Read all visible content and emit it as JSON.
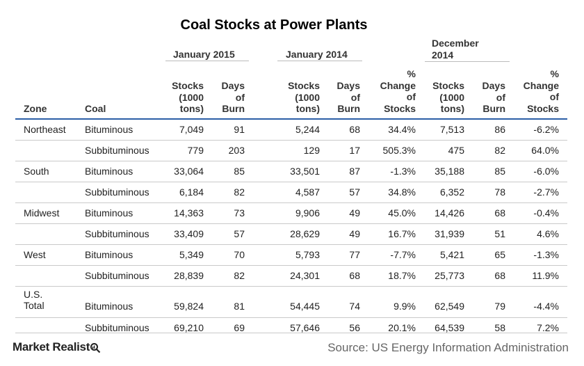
{
  "chart_data": {
    "type": "table",
    "title": "Coal Stocks at Power Plants",
    "column_groups": [
      "January 2015",
      "January 2014",
      "December 2014"
    ],
    "headers": {
      "zone": "Zone",
      "coal": "Coal",
      "stocks_l1": "Stocks",
      "stocks_l2": "(1000",
      "stocks_l3": "tons)",
      "days_l1": "Days",
      "days_l2": "of",
      "days_l3": "Burn",
      "pct_l1": "%",
      "pct_l2": "Change",
      "pct_l3": "of",
      "pct_l4": "Stocks"
    },
    "rows": [
      {
        "zone": "Northeast",
        "coal": "Bituminous",
        "s2015": "7,049",
        "d2015": "91",
        "s2014": "5,244",
        "d2014": "68",
        "pct2014": "34.4%",
        "sdec": "7,513",
        "ddec": "86",
        "pctdec": "-6.2%"
      },
      {
        "zone": "",
        "coal": "Subbituminous",
        "s2015": "779",
        "d2015": "203",
        "s2014": "129",
        "d2014": "17",
        "pct2014": "505.3%",
        "sdec": "475",
        "ddec": "82",
        "pctdec": "64.0%"
      },
      {
        "zone": "South",
        "coal": "Bituminous",
        "s2015": "33,064",
        "d2015": "85",
        "s2014": "33,501",
        "d2014": "87",
        "pct2014": "-1.3%",
        "sdec": "35,188",
        "ddec": "85",
        "pctdec": "-6.0%"
      },
      {
        "zone": "",
        "coal": "Subbituminous",
        "s2015": "6,184",
        "d2015": "82",
        "s2014": "4,587",
        "d2014": "57",
        "pct2014": "34.8%",
        "sdec": "6,352",
        "ddec": "78",
        "pctdec": "-2.7%"
      },
      {
        "zone": "Midwest",
        "coal": "Bituminous",
        "s2015": "14,363",
        "d2015": "73",
        "s2014": "9,906",
        "d2014": "49",
        "pct2014": "45.0%",
        "sdec": "14,426",
        "ddec": "68",
        "pctdec": "-0.4%"
      },
      {
        "zone": "",
        "coal": "Subbituminous",
        "s2015": "33,409",
        "d2015": "57",
        "s2014": "28,629",
        "d2014": "49",
        "pct2014": "16.7%",
        "sdec": "31,939",
        "ddec": "51",
        "pctdec": "4.6%"
      },
      {
        "zone": "West",
        "coal": "Bituminous",
        "s2015": "5,349",
        "d2015": "70",
        "s2014": "5,793",
        "d2014": "77",
        "pct2014": "-7.7%",
        "sdec": "5,421",
        "ddec": "65",
        "pctdec": "-1.3%"
      },
      {
        "zone": "",
        "coal": "Subbituminous",
        "s2015": "28,839",
        "d2015": "82",
        "s2014": "24,301",
        "d2014": "68",
        "pct2014": "18.7%",
        "sdec": "25,773",
        "ddec": "68",
        "pctdec": "11.9%"
      },
      {
        "zone": "U.S. Total",
        "coal": "Bituminous",
        "s2015": "59,824",
        "d2015": "81",
        "s2014": "54,445",
        "d2014": "74",
        "pct2014": "9.9%",
        "sdec": "62,549",
        "ddec": "79",
        "pctdec": "-4.4%"
      },
      {
        "zone": "",
        "coal": "Subbituminous",
        "s2015": "69,210",
        "d2015": "69",
        "s2014": "57,646",
        "d2014": "56",
        "pct2014": "20.1%",
        "sdec": "64,539",
        "ddec": "58",
        "pctdec": "7.2%"
      }
    ]
  },
  "footer": {
    "logo_text": "Market Realist",
    "source": "Source: US Energy Information Administration"
  },
  "colors": {
    "header_rule": "#2b5ea6",
    "row_rule": "#c9c9c9"
  }
}
